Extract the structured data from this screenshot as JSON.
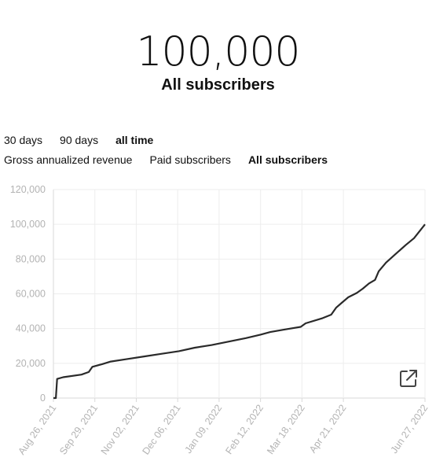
{
  "header": {
    "value": "100,000",
    "label": "All subscribers"
  },
  "range_tabs": [
    {
      "label": "30 days",
      "active": false
    },
    {
      "label": "90 days",
      "active": false
    },
    {
      "label": "all time",
      "active": true
    }
  ],
  "metric_tabs": [
    {
      "label": "Gross annualized revenue",
      "active": false
    },
    {
      "label": "Paid subscribers",
      "active": false
    },
    {
      "label": "All subscribers",
      "active": true
    }
  ],
  "icons": {
    "expand": "external-link-icon"
  },
  "colors": {
    "line": "#2a2a2a",
    "grid": "#ededed",
    "tick_text": "#b3b3b3"
  },
  "chart_data": {
    "type": "line",
    "xlabel": "",
    "ylabel": "",
    "ylim": [
      0,
      120000
    ],
    "y_ticks": [
      "0",
      "20,000",
      "40,000",
      "60,000",
      "80,000",
      "100,000",
      "120,000"
    ],
    "y_tick_values": [
      0,
      20000,
      40000,
      60000,
      80000,
      100000,
      120000
    ],
    "x_ticks": [
      "Aug 26, 2021",
      "Sep 29, 2021",
      "Nov 02, 2021",
      "Dec 06, 2021",
      "Jan 09, 2022",
      "Feb 12, 2022",
      "Mar 18, 2022",
      "Apr 21, 2022",
      "Jun 27, 2022"
    ],
    "x_tick_dates": [
      "2021-08-26",
      "2021-09-29",
      "2021-11-02",
      "2021-12-06",
      "2022-01-09",
      "2022-02-12",
      "2022-03-18",
      "2022-04-21",
      "2022-06-27"
    ],
    "grid": true,
    "series": [
      {
        "points": [
          [
            "2021-08-26",
            0
          ],
          [
            "2021-08-28",
            0
          ],
          [
            "2021-08-29",
            11000
          ],
          [
            "2021-09-03",
            12000
          ],
          [
            "2021-09-18",
            13500
          ],
          [
            "2021-09-24",
            15000
          ],
          [
            "2021-09-27",
            18000
          ],
          [
            "2021-10-05",
            19500
          ],
          [
            "2021-10-12",
            21000
          ],
          [
            "2021-10-26",
            22500
          ],
          [
            "2021-11-09",
            24000
          ],
          [
            "2021-11-23",
            25500
          ],
          [
            "2021-12-07",
            27000
          ],
          [
            "2021-12-20",
            29000
          ],
          [
            "2022-01-03",
            30500
          ],
          [
            "2022-01-17",
            32500
          ],
          [
            "2022-01-31",
            34500
          ],
          [
            "2022-02-12",
            36500
          ],
          [
            "2022-02-20",
            38000
          ],
          [
            "2022-03-04",
            39500
          ],
          [
            "2022-03-17",
            41000
          ],
          [
            "2022-03-21",
            43000
          ],
          [
            "2022-04-04",
            46000
          ],
          [
            "2022-04-11",
            48000
          ],
          [
            "2022-04-15",
            52000
          ],
          [
            "2022-04-20",
            55000
          ],
          [
            "2022-04-25",
            58000
          ],
          [
            "2022-05-02",
            60500
          ],
          [
            "2022-05-07",
            63000
          ],
          [
            "2022-05-12",
            66000
          ],
          [
            "2022-05-17",
            68000
          ],
          [
            "2022-05-20",
            73000
          ],
          [
            "2022-05-26",
            78000
          ],
          [
            "2022-06-03",
            83000
          ],
          [
            "2022-06-11",
            88000
          ],
          [
            "2022-06-18",
            92000
          ],
          [
            "2022-06-27",
            100000
          ]
        ]
      }
    ]
  }
}
